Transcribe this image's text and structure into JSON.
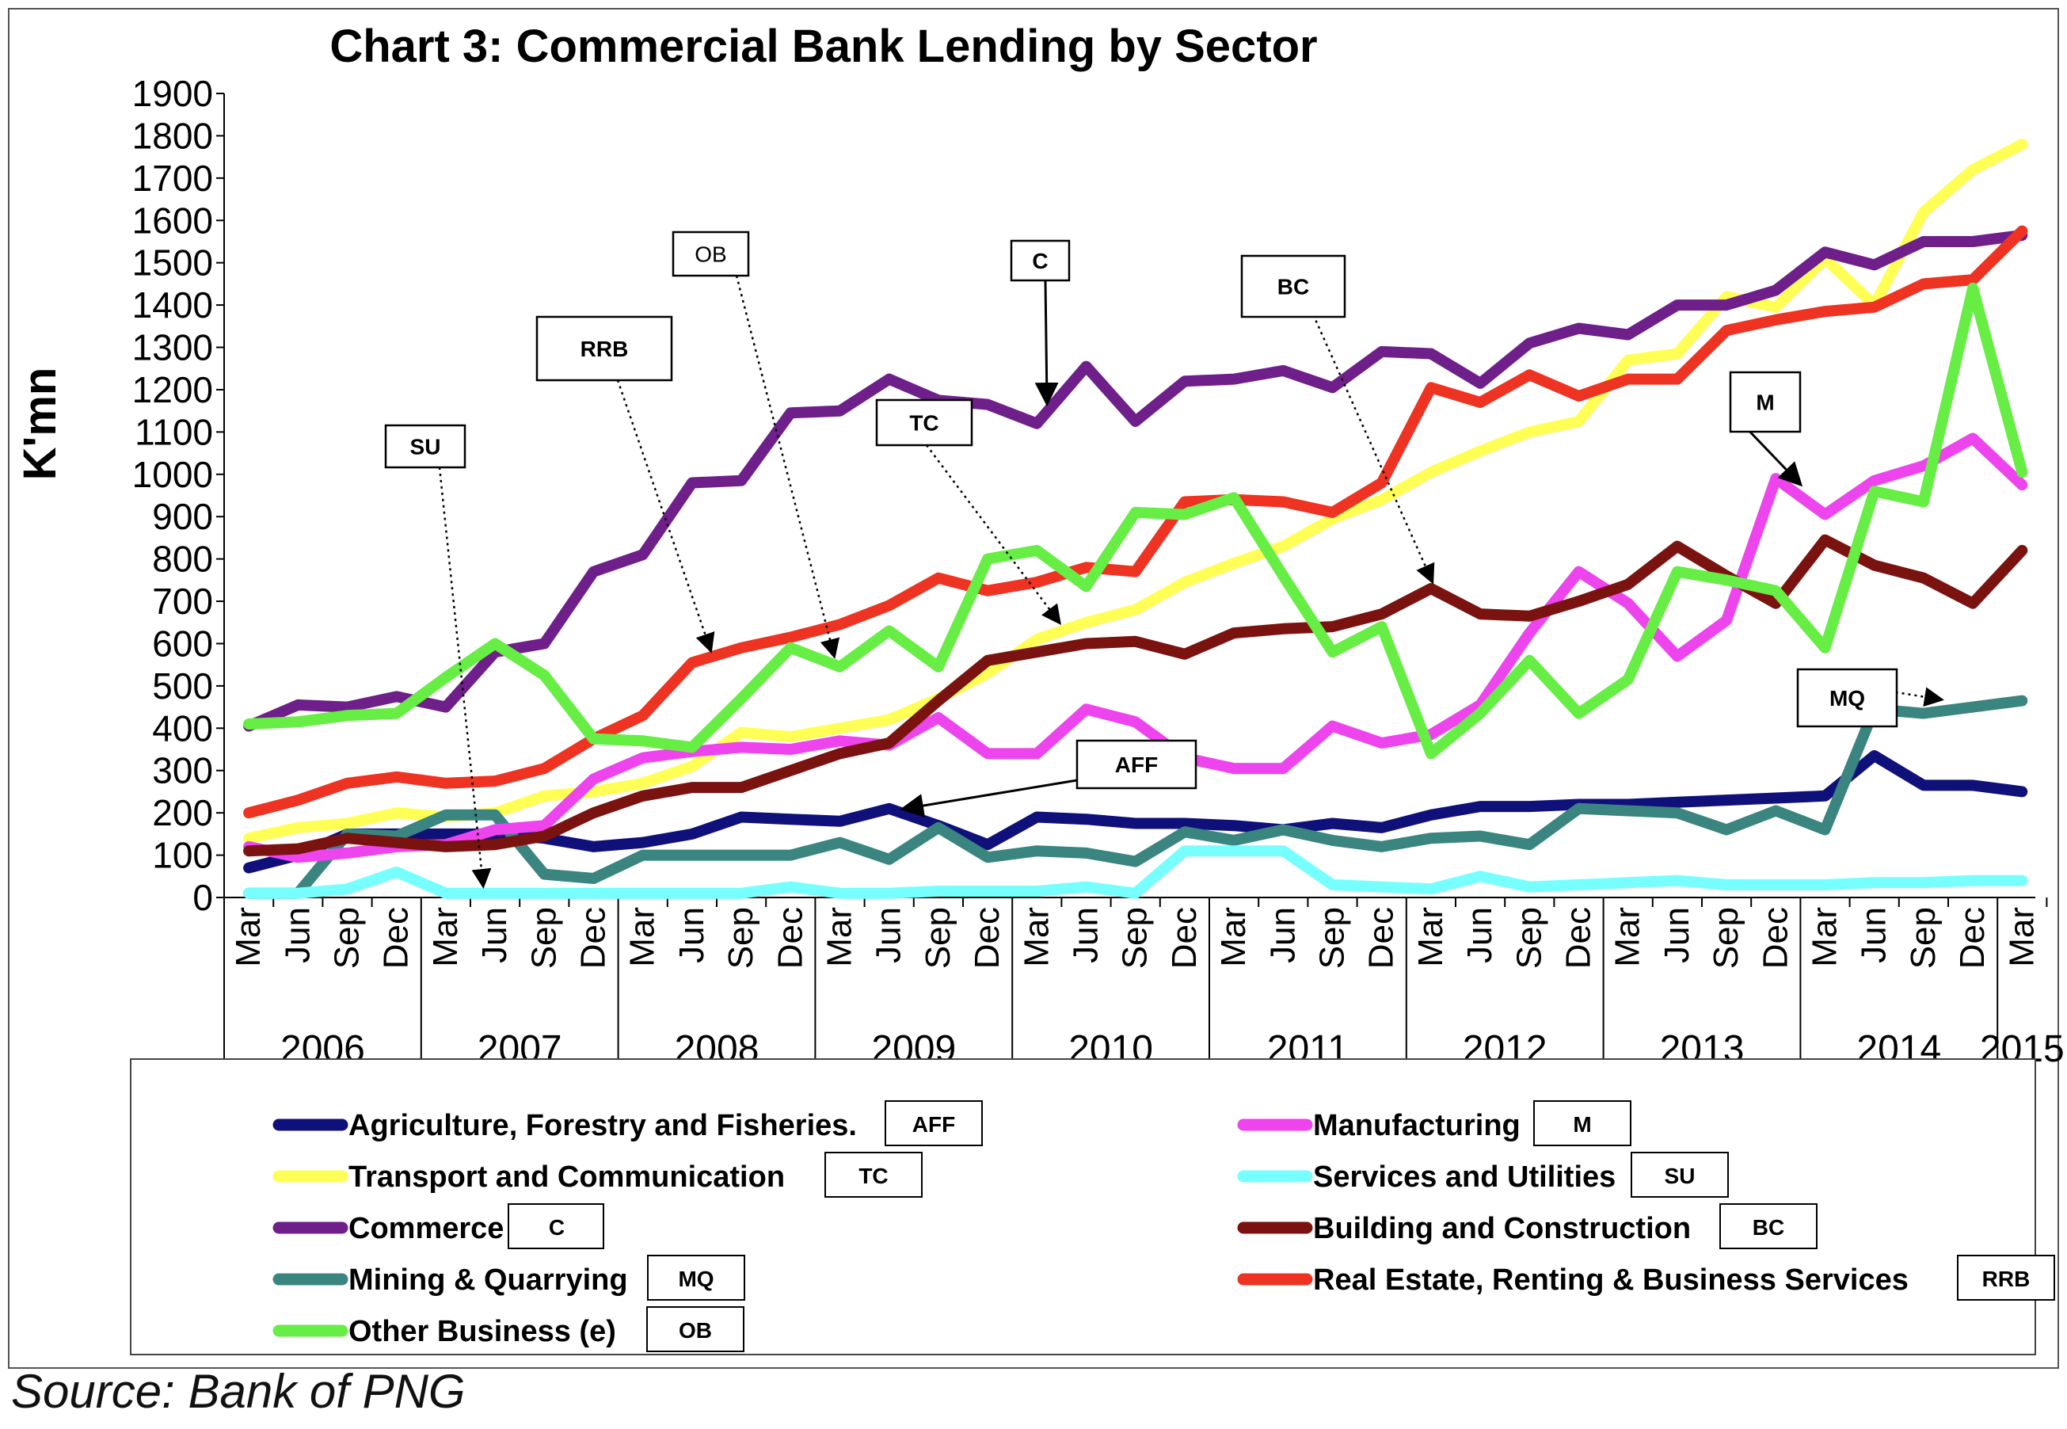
{
  "chart_data": {
    "type": "line",
    "title": "Chart 3: Commercial Bank Lending by Sector",
    "ylabel": "K'mn",
    "xlabel": "",
    "ylim": [
      0,
      1900
    ],
    "yticks": [
      0,
      100,
      200,
      300,
      400,
      500,
      600,
      700,
      800,
      900,
      1000,
      1100,
      1200,
      1300,
      1400,
      1500,
      1600,
      1700,
      1800,
      1900
    ],
    "categories": [
      "Mar",
      "Jun",
      "Sep",
      "Dec",
      "Mar",
      "Jun",
      "Sep",
      "Dec",
      "Mar",
      "Jun",
      "Sep",
      "Dec",
      "Mar",
      "Jun",
      "Sep",
      "Dec",
      "Mar",
      "Jun",
      "Sep",
      "Dec",
      "Mar",
      "Jun",
      "Sep",
      "Dec",
      "Mar",
      "Jun",
      "Sep",
      "Dec",
      "Mar",
      "Jun",
      "Sep",
      "Dec",
      "Mar",
      "Jun",
      "Sep",
      "Dec",
      "Mar"
    ],
    "years": [
      "2006",
      "2007",
      "2008",
      "2009",
      "2010",
      "2011",
      "2012",
      "2013",
      "2014",
      "2015"
    ],
    "grid": false,
    "legend_position": "bottom",
    "series": [
      {
        "name": "Agriculture, Forestry and Fisheries.",
        "abbr": "AFF",
        "color": "#10107a",
        "values": [
          70,
          100,
          150,
          150,
          150,
          150,
          140,
          120,
          130,
          150,
          190,
          185,
          180,
          210,
          170,
          125,
          190,
          185,
          175,
          175,
          170,
          160,
          175,
          165,
          195,
          215,
          215,
          220,
          220,
          225,
          230,
          235,
          240,
          335,
          265,
          265,
          250
        ]
      },
      {
        "name": "Transport and Communication",
        "abbr": "TC",
        "color": "#ffff55",
        "values": [
          140,
          165,
          175,
          200,
          190,
          200,
          240,
          250,
          270,
          310,
          390,
          380,
          400,
          420,
          470,
          530,
          610,
          650,
          680,
          745,
          790,
          830,
          895,
          940,
          1005,
          1055,
          1100,
          1125,
          1270,
          1285,
          1420,
          1395,
          1510,
          1400,
          1620,
          1720,
          1780
        ]
      },
      {
        "name": "Commerce",
        "abbr": "C",
        "color": "#6e1f8a",
        "values": [
          405,
          455,
          450,
          475,
          450,
          580,
          600,
          770,
          810,
          980,
          985,
          1145,
          1150,
          1225,
          1175,
          1165,
          1120,
          1255,
          1125,
          1220,
          1225,
          1245,
          1205,
          1290,
          1285,
          1215,
          1310,
          1345,
          1330,
          1400,
          1400,
          1435,
          1525,
          1495,
          1550,
          1550,
          1565
        ]
      },
      {
        "name": "Mining & Quarrying",
        "abbr": "MQ",
        "color": "#3a8580",
        "values": [
          10,
          10,
          150,
          145,
          195,
          195,
          55,
          45,
          100,
          100,
          100,
          100,
          130,
          90,
          165,
          95,
          110,
          105,
          85,
          155,
          135,
          160,
          135,
          120,
          140,
          145,
          125,
          210,
          205,
          200,
          160,
          205,
          160,
          445,
          435,
          450,
          465
        ]
      },
      {
        "name": "Other Business (e)",
        "abbr": "OB",
        "color": "#66ee44",
        "values": [
          410,
          415,
          430,
          435,
          520,
          600,
          525,
          375,
          370,
          355,
          470,
          590,
          545,
          630,
          545,
          800,
          820,
          735,
          910,
          905,
          945,
          760,
          580,
          640,
          340,
          435,
          560,
          435,
          515,
          770,
          750,
          725,
          590,
          960,
          935,
          1440,
          1005
        ]
      },
      {
        "name": "Manufacturing",
        "abbr": "M",
        "color": "#ee44ee",
        "values": [
          120,
          95,
          105,
          120,
          125,
          160,
          170,
          280,
          330,
          345,
          355,
          350,
          370,
          360,
          425,
          340,
          340,
          445,
          415,
          330,
          305,
          305,
          405,
          365,
          385,
          455,
          625,
          770,
          695,
          570,
          655,
          990,
          905,
          985,
          1020,
          1085,
          975
        ]
      },
      {
        "name": "Services and Utilities",
        "abbr": "SU",
        "color": "#77ffff",
        "values": [
          10,
          10,
          20,
          60,
          10,
          10,
          10,
          10,
          10,
          10,
          10,
          25,
          10,
          10,
          15,
          15,
          15,
          25,
          10,
          110,
          110,
          110,
          30,
          25,
          20,
          50,
          25,
          30,
          35,
          40,
          30,
          30,
          30,
          35,
          35,
          40,
          40
        ]
      },
      {
        "name": "Building and Construction",
        "abbr": "BC",
        "color": "#7a1310",
        "values": [
          110,
          115,
          140,
          130,
          120,
          125,
          145,
          200,
          240,
          260,
          260,
          300,
          340,
          365,
          465,
          560,
          580,
          600,
          605,
          575,
          625,
          635,
          640,
          670,
          730,
          670,
          665,
          700,
          740,
          830,
          760,
          695,
          845,
          785,
          755,
          695,
          820
        ]
      },
      {
        "name": "Real Estate, Renting & Business Services",
        "abbr": "RRB",
        "color": "#ee3322",
        "values": [
          200,
          230,
          270,
          285,
          270,
          275,
          305,
          375,
          430,
          555,
          590,
          615,
          645,
          690,
          755,
          725,
          745,
          780,
          770,
          935,
          940,
          935,
          910,
          980,
          1205,
          1170,
          1235,
          1185,
          1225,
          1225,
          1340,
          1365,
          1385,
          1395,
          1450,
          1460,
          1575
        ]
      }
    ],
    "annotations": [
      "SU",
      "RRB",
      "OB",
      "C",
      "TC",
      "BC",
      "M",
      "AFF",
      "MQ"
    ]
  },
  "source": "Source: Bank of PNG"
}
